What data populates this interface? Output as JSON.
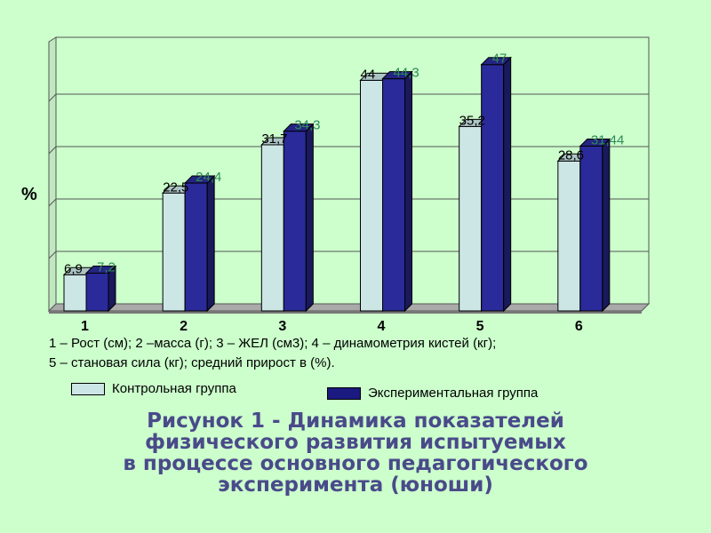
{
  "chart_data": {
    "type": "bar",
    "categories": [
      "1",
      "2",
      "3",
      "4",
      "5",
      "6"
    ],
    "series": [
      {
        "name": "Контрольная группа",
        "values": [
          6.9,
          22.5,
          31.7,
          44,
          35.2,
          28.6
        ],
        "labels": [
          "6,9",
          "22,5",
          "31,7",
          "44",
          "35,2",
          "28,6"
        ],
        "color": "#cce6e6",
        "label_color": "#000000"
      },
      {
        "name": "Экспериментальная группа",
        "values": [
          7.2,
          24.4,
          34.3,
          44.3,
          47,
          31.44
        ],
        "labels": [
          "7,2",
          "24,4",
          "34,3",
          "44,3",
          "47",
          "31,44"
        ],
        "color": "#2a2a9a",
        "label_color": "#2e8b57"
      }
    ],
    "ylabel": "%",
    "ylim": [
      0,
      50
    ],
    "grid": true,
    "legend_position": "bottom"
  },
  "caption": {
    "line1": "1 – Рост (см); 2 –масса (г); 3 – ЖЕЛ (см3); 4 – динамометрия кистей (кг);",
    "line2": "5 – становая сила (кг); средний прирост в (%)."
  },
  "legend": {
    "control": "Контрольная группа",
    "experimental": "Экспериментальная группа"
  },
  "title": {
    "line1": "Рисунок 1 - Динамика показателей",
    "line2": "физического развития испытуемых",
    "line3": "в процессе основного педагогического",
    "line4": "эксперимента (юноши)"
  }
}
